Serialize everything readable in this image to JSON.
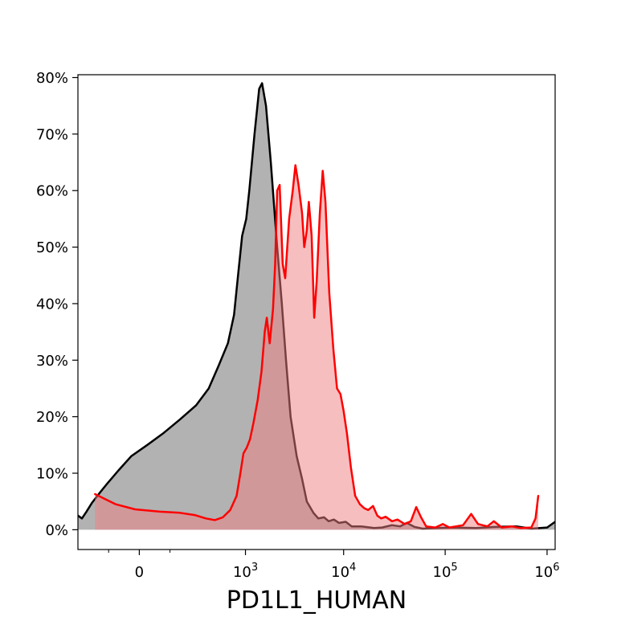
{
  "chart_data": {
    "type": "area",
    "xlabel": "PD1L1_HUMAN",
    "ylabel": "",
    "x_scale": "biexponential",
    "xlim": [
      -300,
      1200000
    ],
    "ylim": [
      -0.035,
      0.805
    ],
    "y_ticks": [
      {
        "value": 0.0,
        "label": "0%"
      },
      {
        "value": 0.1,
        "label": "10%"
      },
      {
        "value": 0.2,
        "label": "20%"
      },
      {
        "value": 0.3,
        "label": "30%"
      },
      {
        "value": 0.4,
        "label": "40%"
      },
      {
        "value": 0.5,
        "label": "50%"
      },
      {
        "value": 0.6,
        "label": "60%"
      },
      {
        "value": 0.7,
        "label": "70%"
      },
      {
        "value": 0.8,
        "label": "80%"
      }
    ],
    "x_ticks": [
      {
        "value": 0,
        "label": "0",
        "sup": ""
      },
      {
        "value": 1000,
        "label": "10",
        "sup": "3"
      },
      {
        "value": 10000,
        "label": "10",
        "sup": "4"
      },
      {
        "value": 100000,
        "label": "10",
        "sup": "5"
      },
      {
        "value": 1000000,
        "label": "10",
        "sup": "6"
      }
    ],
    "x_minor_ticks": [
      -100,
      100
    ],
    "series": [
      {
        "color": "#000000",
        "fill": "#7f7f7f",
        "fill_opacity": 0.6,
        "points": [
          [
            -300,
            0.025
          ],
          [
            -265,
            0.02
          ],
          [
            -230,
            0.032
          ],
          [
            -190,
            0.048
          ],
          [
            -150,
            0.063
          ],
          [
            -110,
            0.08
          ],
          [
            -60,
            0.105
          ],
          [
            -20,
            0.13
          ],
          [
            20,
            0.15
          ],
          [
            70,
            0.17
          ],
          [
            150,
            0.195
          ],
          [
            260,
            0.22
          ],
          [
            380,
            0.25
          ],
          [
            500,
            0.29
          ],
          [
            640,
            0.33
          ],
          [
            750,
            0.38
          ],
          [
            830,
            0.45
          ],
          [
            920,
            0.52
          ],
          [
            1020,
            0.55
          ],
          [
            1100,
            0.6
          ],
          [
            1250,
            0.7
          ],
          [
            1400,
            0.78
          ],
          [
            1500,
            0.79
          ],
          [
            1650,
            0.75
          ],
          [
            1850,
            0.65
          ],
          [
            2150,
            0.5
          ],
          [
            2400,
            0.4
          ],
          [
            2650,
            0.3
          ],
          [
            2950,
            0.2
          ],
          [
            3400,
            0.13
          ],
          [
            3850,
            0.09
          ],
          [
            4300,
            0.05
          ],
          [
            5000,
            0.03
          ],
          [
            5600,
            0.02
          ],
          [
            6400,
            0.022
          ],
          [
            7100,
            0.015
          ],
          [
            8000,
            0.018
          ],
          [
            9000,
            0.012
          ],
          [
            10500,
            0.014
          ],
          [
            12000,
            0.006
          ],
          [
            15000,
            0.006
          ],
          [
            20000,
            0.003
          ],
          [
            24000,
            0.004
          ],
          [
            30000,
            0.008
          ],
          [
            36000,
            0.006
          ],
          [
            42000,
            0.012
          ],
          [
            50000,
            0.005
          ],
          [
            60000,
            0.002
          ],
          [
            80000,
            0.003
          ],
          [
            120000,
            0.004
          ],
          [
            200000,
            0.003
          ],
          [
            300000,
            0.005
          ],
          [
            500000,
            0.006
          ],
          [
            700000,
            0.002
          ],
          [
            1000000,
            0.004
          ],
          [
            1200000,
            0.014
          ]
        ]
      },
      {
        "color": "#ff0000",
        "fill": "#ef7d81",
        "fill_opacity": 0.5,
        "points": [
          [
            -172,
            0.063
          ],
          [
            -120,
            0.055
          ],
          [
            -70,
            0.045
          ],
          [
            -10,
            0.036
          ],
          [
            60,
            0.032
          ],
          [
            150,
            0.03
          ],
          [
            250,
            0.026
          ],
          [
            350,
            0.02
          ],
          [
            450,
            0.017
          ],
          [
            560,
            0.022
          ],
          [
            680,
            0.035
          ],
          [
            800,
            0.06
          ],
          [
            880,
            0.1
          ],
          [
            950,
            0.135
          ],
          [
            1030,
            0.145
          ],
          [
            1120,
            0.16
          ],
          [
            1220,
            0.19
          ],
          [
            1350,
            0.23
          ],
          [
            1480,
            0.28
          ],
          [
            1600,
            0.35
          ],
          [
            1680,
            0.375
          ],
          [
            1800,
            0.33
          ],
          [
            1950,
            0.39
          ],
          [
            2050,
            0.47
          ],
          [
            2150,
            0.6
          ],
          [
            2280,
            0.61
          ],
          [
            2450,
            0.47
          ],
          [
            2600,
            0.445
          ],
          [
            2850,
            0.55
          ],
          [
            3100,
            0.6
          ],
          [
            3300,
            0.645
          ],
          [
            3550,
            0.61
          ],
          [
            3850,
            0.56
          ],
          [
            4050,
            0.5
          ],
          [
            4300,
            0.53
          ],
          [
            4500,
            0.58
          ],
          [
            4800,
            0.52
          ],
          [
            5100,
            0.375
          ],
          [
            5400,
            0.44
          ],
          [
            5800,
            0.56
          ],
          [
            6200,
            0.635
          ],
          [
            6600,
            0.58
          ],
          [
            7200,
            0.42
          ],
          [
            7900,
            0.32
          ],
          [
            8600,
            0.25
          ],
          [
            9300,
            0.24
          ],
          [
            10000,
            0.21
          ],
          [
            10800,
            0.17
          ],
          [
            11800,
            0.11
          ],
          [
            13000,
            0.06
          ],
          [
            14500,
            0.045
          ],
          [
            16000,
            0.038
          ],
          [
            17500,
            0.035
          ],
          [
            19500,
            0.042
          ],
          [
            21500,
            0.025
          ],
          [
            23500,
            0.02
          ],
          [
            26000,
            0.023
          ],
          [
            30000,
            0.015
          ],
          [
            34000,
            0.018
          ],
          [
            40000,
            0.01
          ],
          [
            46000,
            0.015
          ],
          [
            52000,
            0.04
          ],
          [
            58000,
            0.022
          ],
          [
            65000,
            0.006
          ],
          [
            80000,
            0.004
          ],
          [
            95000,
            0.01
          ],
          [
            110000,
            0.004
          ],
          [
            150000,
            0.008
          ],
          [
            180000,
            0.028
          ],
          [
            210000,
            0.01
          ],
          [
            260000,
            0.006
          ],
          [
            300000,
            0.015
          ],
          [
            360000,
            0.004
          ],
          [
            450000,
            0.006
          ],
          [
            550000,
            0.003
          ],
          [
            700000,
            0.004
          ],
          [
            770000,
            0.02
          ],
          [
            820000,
            0.06
          ]
        ]
      }
    ]
  }
}
